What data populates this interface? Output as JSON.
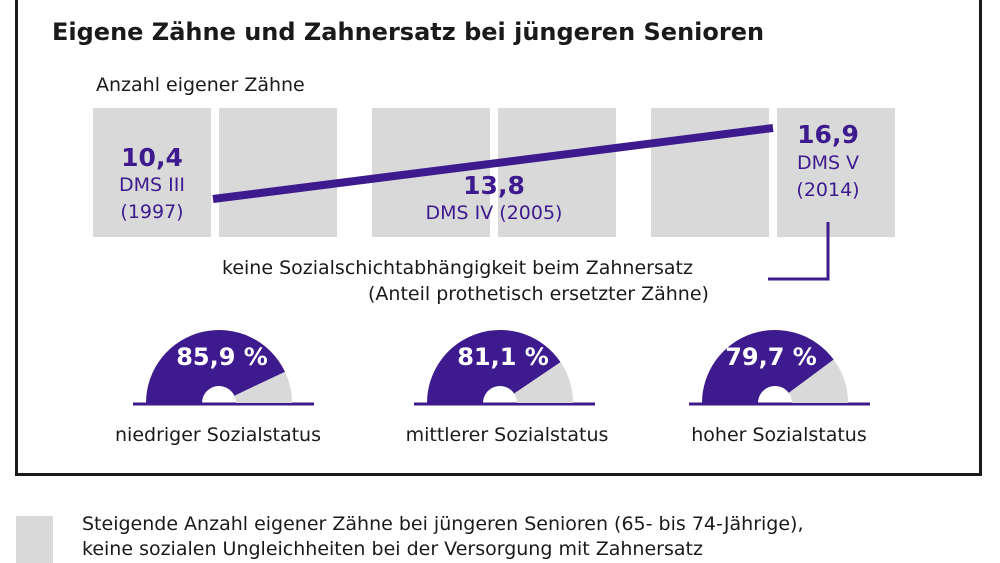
{
  "chart_data": [
    {
      "type": "line",
      "title": "Eigene Zähne und Zahnersatz bei jüngeren Senioren",
      "subtitle": "Anzahl eigener Zähne",
      "series": [
        {
          "x": [
            "DMS III (1997)",
            "DMS IV (2005)",
            "DMS V (2014)"
          ],
          "values": [
            10.4,
            13.8,
            16.9
          ]
        }
      ],
      "points": [
        {
          "value_label": "10,4",
          "label_line1": "DMS III",
          "label_line2": "(1997)"
        },
        {
          "value_label": "13,8",
          "label_line1": "DMS IV (2005)",
          "label_line2": ""
        },
        {
          "value_label": "16,9",
          "label_line1": "DMS V",
          "label_line2": "(2014)"
        }
      ]
    },
    {
      "type": "pie",
      "title": "keine Sozialschichtabhängigkeit beim Zahnersatz",
      "subtitle": "(Anteil prothetisch ersetzter Zähne)",
      "categories": [
        "niedriger Sozialstatus",
        "mittlerer Sozialstatus",
        "hoher Sozialstatus"
      ],
      "values": [
        85.9,
        81.1,
        79.7
      ],
      "value_labels": [
        "85,9 %",
        "81,1 %",
        "79,7 %"
      ]
    }
  ],
  "legend": {
    "text_line1": "Steigende Anzahl eigener Zähne bei jüngeren Senioren (65- bis 74-Jährige),",
    "text_line2": "keine sozialen Ungleichheiten bei der Versorgung mit Zahnersatz"
  },
  "colors": {
    "accent": "#3d1a8e",
    "tile": "#d9d9d9",
    "text": "#1a1a1a"
  }
}
